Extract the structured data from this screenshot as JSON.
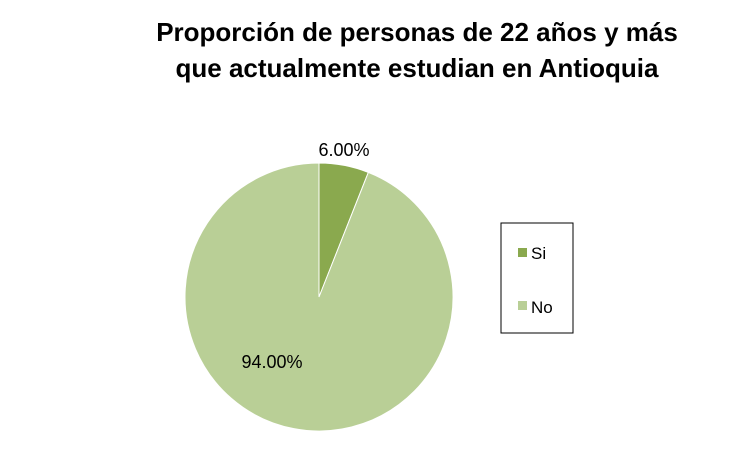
{
  "chart_data": {
    "type": "pie",
    "title": "Proporción de personas de 22 años y más que actualmente estudian en Antioquia",
    "title_lines": [
      "Proporción de personas de 22 años y más",
      "que actualmente estudian en Antioquia"
    ],
    "categories": [
      "Si",
      "No"
    ],
    "values": [
      6.0,
      94.0
    ],
    "data_labels": [
      "6.00%",
      "94.00%"
    ],
    "colors": [
      "#8aa94e",
      "#b9cf96"
    ],
    "legend": {
      "position": "right",
      "entries": [
        "Si",
        "No"
      ]
    }
  }
}
